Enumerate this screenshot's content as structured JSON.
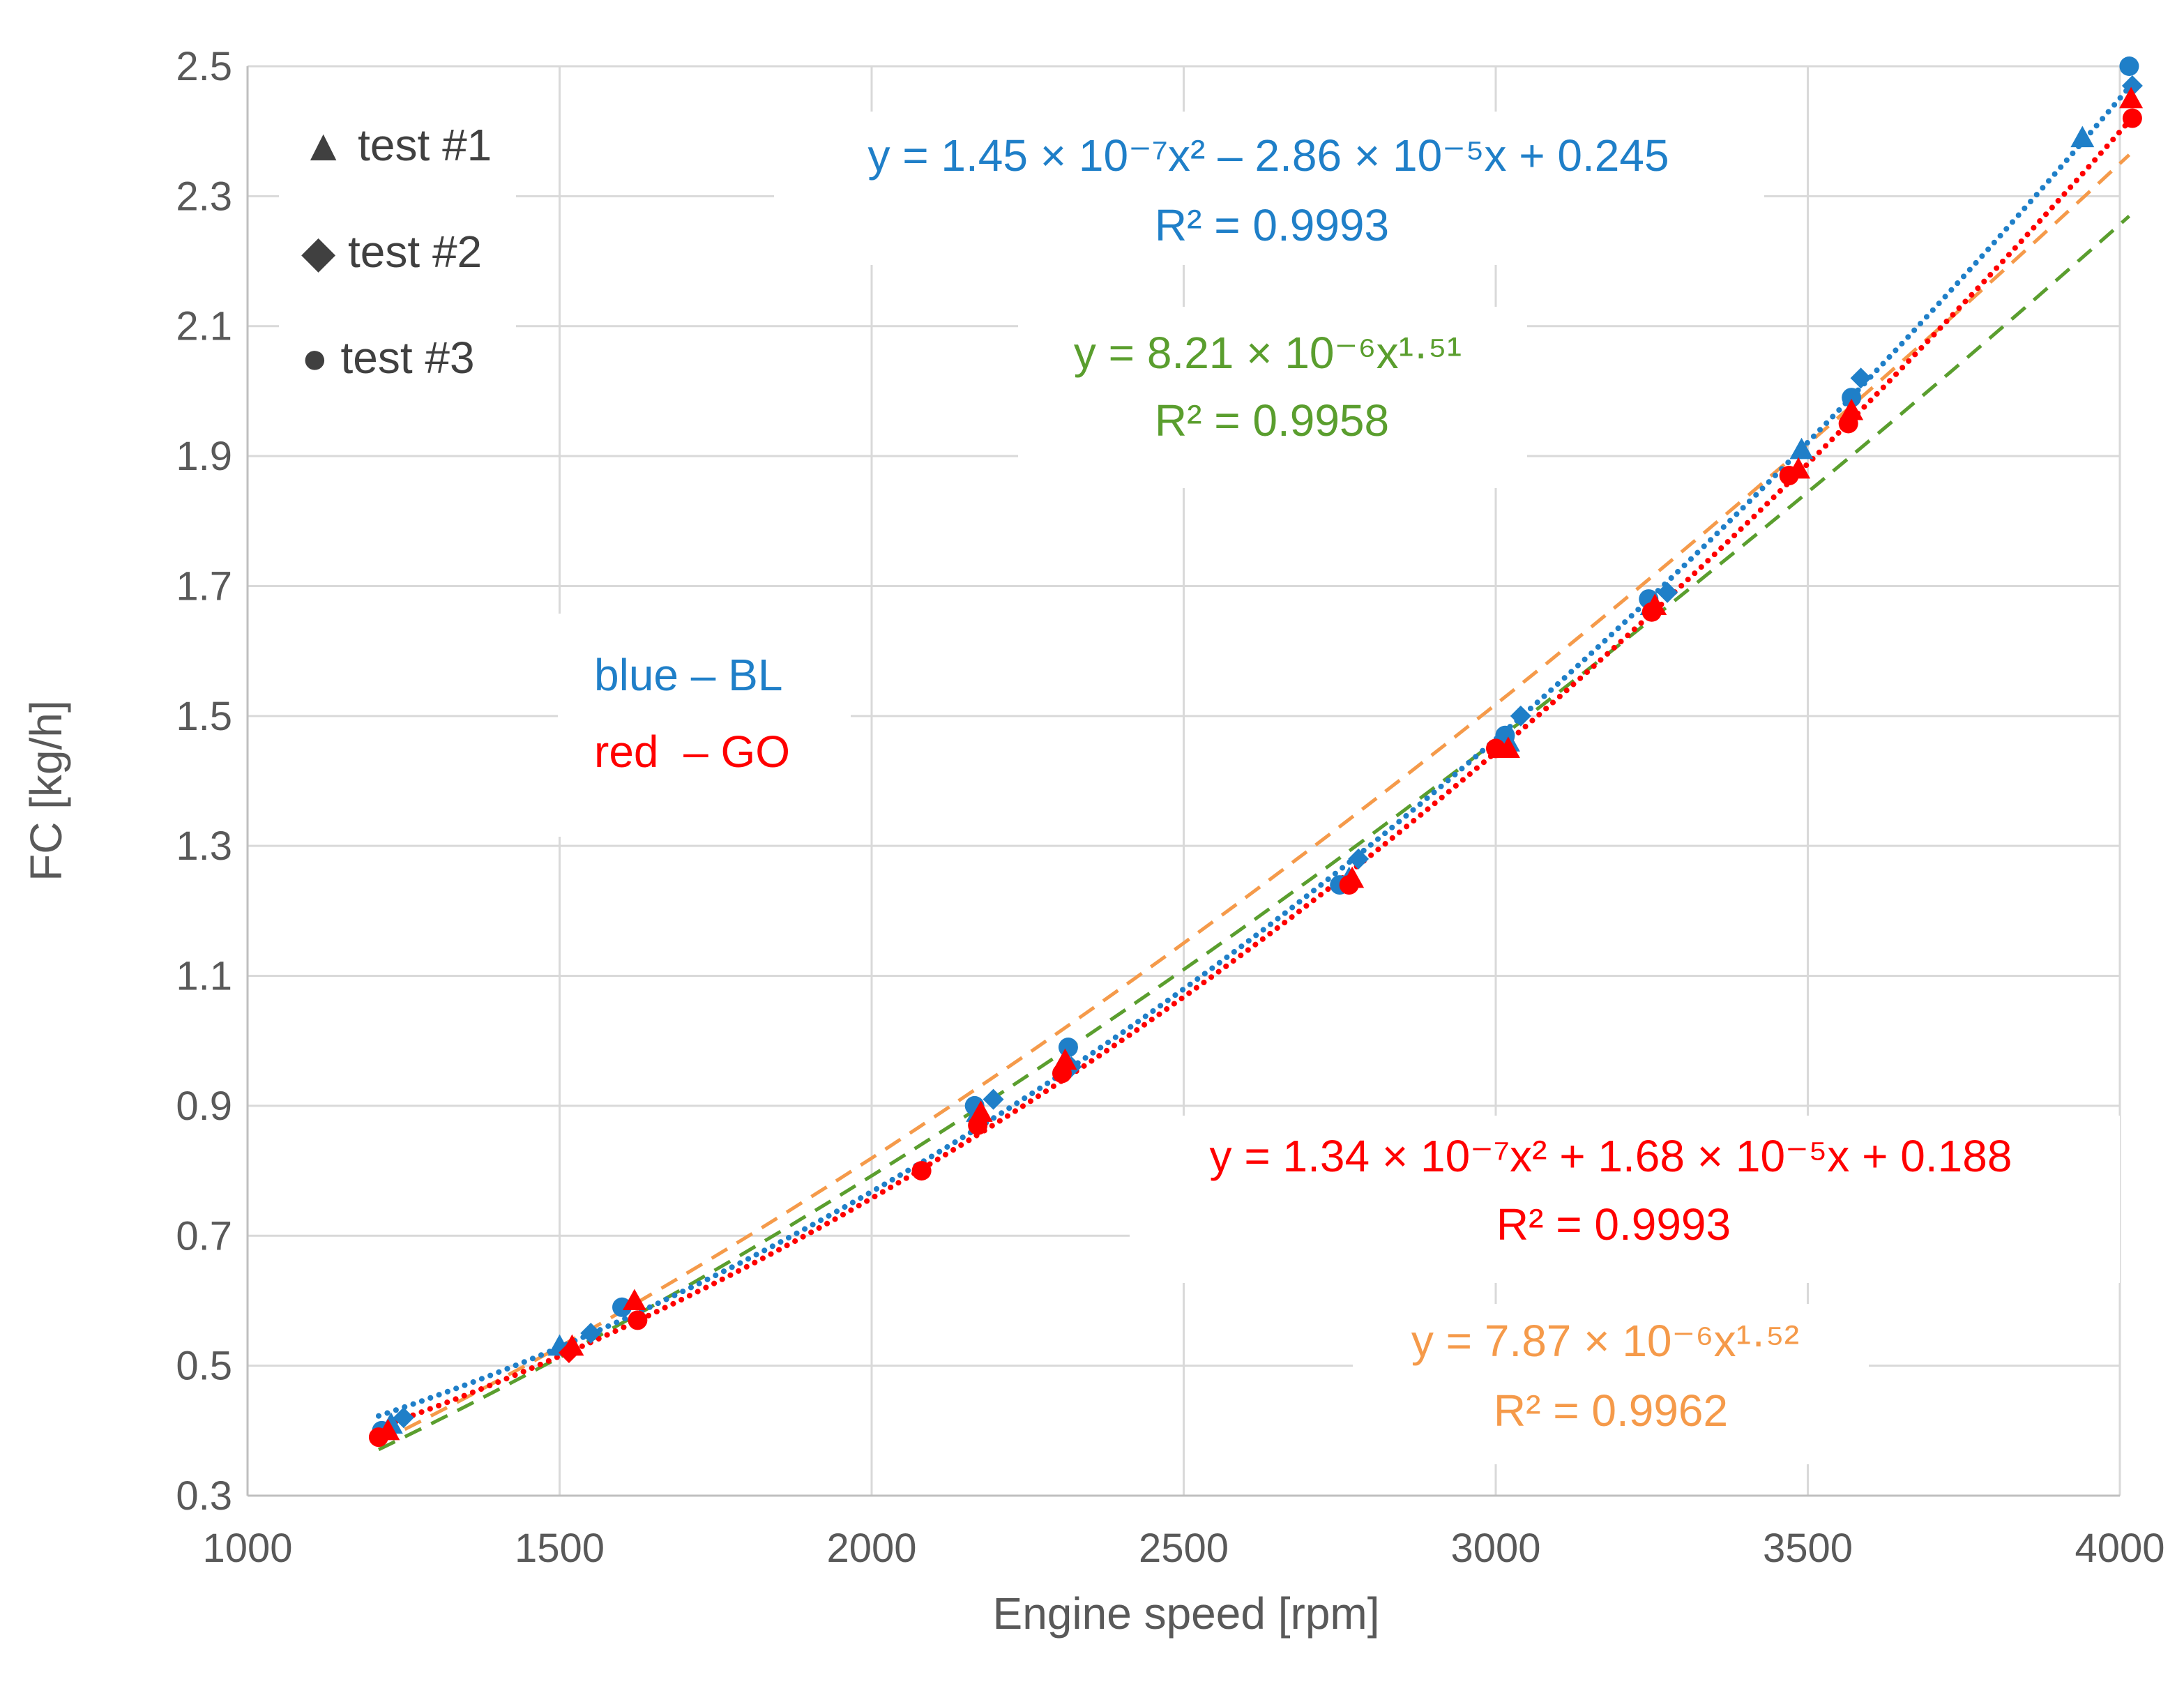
{
  "colors": {
    "blue": "#1f7fc8",
    "red": "#ff0000",
    "green": "#5a9e2e",
    "orange": "#f59a4a",
    "grid": "#d9d9d9",
    "axis": "#bfbfbf",
    "text": "#595959",
    "marker_gray": "#404040"
  },
  "chart_data": {
    "type": "scatter",
    "xlabel": "Engine speed [rpm]",
    "ylabel": "FC [kg/h]",
    "xlim": [
      1000,
      4000
    ],
    "ylim": [
      0.3,
      2.5
    ],
    "xticks": [
      1000,
      1500,
      2000,
      2500,
      3000,
      3500,
      4000
    ],
    "yticks": [
      0.3,
      0.5,
      0.7,
      0.9,
      1.1,
      1.3,
      1.5,
      1.7,
      1.9,
      2.1,
      2.3,
      2.5
    ],
    "xtick_labels": [
      "1000",
      "1500",
      "2000",
      "2500",
      "3000",
      "3500",
      "4000"
    ],
    "ytick_labels": [
      "0.3",
      "0.5",
      "0.7",
      "0.9",
      "1.1",
      "1.3",
      "1.5",
      "1.7",
      "1.9",
      "2.1",
      "2.3",
      "2.5"
    ],
    "grid": true,
    "legend": {
      "position": "top-left",
      "items": [
        {
          "marker": "triangle",
          "label": "▲ test #1"
        },
        {
          "marker": "diamond",
          "label": "◆ test #2"
        },
        {
          "marker": "circle",
          "label": "● test #3"
        }
      ]
    },
    "color_key": {
      "blue_line": "blue – BL",
      "red_line": "red  – GO"
    },
    "series": [
      {
        "name": "BL (blue)",
        "color": "blue",
        "points": [
          {
            "x": 1230,
            "y": 0.41,
            "marker": "triangle"
          },
          {
            "x": 1250,
            "y": 0.42,
            "marker": "diamond"
          },
          {
            "x": 1215,
            "y": 0.4,
            "marker": "circle"
          },
          {
            "x": 1500,
            "y": 0.53,
            "marker": "triangle"
          },
          {
            "x": 1550,
            "y": 0.55,
            "marker": "diamond"
          },
          {
            "x": 1600,
            "y": 0.59,
            "marker": "circle"
          },
          {
            "x": 2165,
            "y": 0.9,
            "marker": "circle"
          },
          {
            "x": 2195,
            "y": 0.91,
            "marker": "diamond"
          },
          {
            "x": 2170,
            "y": 0.89,
            "marker": "triangle"
          },
          {
            "x": 2315,
            "y": 0.99,
            "marker": "circle"
          },
          {
            "x": 2320,
            "y": 0.96,
            "marker": "diamond"
          },
          {
            "x": 2310,
            "y": 0.97,
            "marker": "triangle"
          },
          {
            "x": 2750,
            "y": 1.24,
            "marker": "circle"
          },
          {
            "x": 2780,
            "y": 1.28,
            "marker": "diamond"
          },
          {
            "x": 2765,
            "y": 1.25,
            "marker": "triangle"
          },
          {
            "x": 3015,
            "y": 1.47,
            "marker": "circle"
          },
          {
            "x": 3040,
            "y": 1.5,
            "marker": "diamond"
          },
          {
            "x": 3020,
            "y": 1.46,
            "marker": "triangle"
          },
          {
            "x": 3245,
            "y": 1.68,
            "marker": "circle"
          },
          {
            "x": 3275,
            "y": 1.69,
            "marker": "diamond"
          },
          {
            "x": 3250,
            "y": 1.67,
            "marker": "triangle"
          },
          {
            "x": 3490,
            "y": 1.91,
            "marker": "triangle"
          },
          {
            "x": 3570,
            "y": 1.99,
            "marker": "circle"
          },
          {
            "x": 3585,
            "y": 2.02,
            "marker": "diamond"
          },
          {
            "x": 3940,
            "y": 2.39,
            "marker": "triangle"
          },
          {
            "x": 4015,
            "y": 2.5,
            "marker": "circle"
          },
          {
            "x": 4020,
            "y": 2.47,
            "marker": "diamond"
          }
        ],
        "fit": {
          "kind": "poly2",
          "a": 1.45e-07,
          "b": -2.86e-05,
          "c": 0.245,
          "x_range": [
            1210,
            4025
          ],
          "style": "dotted"
        },
        "annotation": {
          "equation": "y = 1.45 × 10⁻⁷x² – 2.86 × 10⁻⁵x + 0.245",
          "r2": "R² = 0.9993"
        }
      },
      {
        "name": "GO (red)",
        "color": "red",
        "points": [
          {
            "x": 1210,
            "y": 0.39,
            "marker": "circle"
          },
          {
            "x": 1225,
            "y": 0.4,
            "marker": "triangle"
          },
          {
            "x": 1520,
            "y": 0.53,
            "marker": "triangle"
          },
          {
            "x": 1515,
            "y": 0.52,
            "marker": "diamond"
          },
          {
            "x": 1625,
            "y": 0.57,
            "marker": "circle"
          },
          {
            "x": 1620,
            "y": 0.6,
            "marker": "triangle"
          },
          {
            "x": 2080,
            "y": 0.8,
            "marker": "circle"
          },
          {
            "x": 2170,
            "y": 0.87,
            "marker": "circle"
          },
          {
            "x": 2175,
            "y": 0.89,
            "marker": "triangle"
          },
          {
            "x": 2305,
            "y": 0.95,
            "marker": "circle"
          },
          {
            "x": 2310,
            "y": 0.97,
            "marker": "triangle"
          },
          {
            "x": 2765,
            "y": 1.24,
            "marker": "circle"
          },
          {
            "x": 2770,
            "y": 1.25,
            "marker": "triangle"
          },
          {
            "x": 3000,
            "y": 1.45,
            "marker": "circle"
          },
          {
            "x": 3020,
            "y": 1.45,
            "marker": "triangle"
          },
          {
            "x": 3250,
            "y": 1.66,
            "marker": "circle"
          },
          {
            "x": 3255,
            "y": 1.67,
            "marker": "triangle"
          },
          {
            "x": 3470,
            "y": 1.87,
            "marker": "circle"
          },
          {
            "x": 3485,
            "y": 1.88,
            "marker": "triangle"
          },
          {
            "x": 3565,
            "y": 1.95,
            "marker": "circle"
          },
          {
            "x": 3570,
            "y": 1.97,
            "marker": "triangle"
          },
          {
            "x": 4020,
            "y": 2.42,
            "marker": "circle"
          },
          {
            "x": 4018,
            "y": 2.45,
            "marker": "triangle"
          }
        ],
        "fit": {
          "kind": "poly2",
          "a": 1.34e-07,
          "b": 1.68e-05,
          "c": 0.188,
          "x_range": [
            1210,
            4025
          ],
          "style": "dotted"
        },
        "annotation": {
          "equation": "y = 1.34 × 10⁻⁷x² + 1.68 × 10⁻⁵x + 0.188",
          "r2": "R² = 0.9993"
        }
      },
      {
        "name": "BL power fit (green)",
        "color": "green",
        "points": [],
        "fit": {
          "kind": "power",
          "a": 8.21e-06,
          "b": 1.51,
          "x_range": [
            1210,
            4015
          ],
          "style": "dashed"
        },
        "annotation": {
          "equation": "y = 8.21 × 10⁻⁶x¹·⁵¹",
          "r2": "R² = 0.9958"
        }
      },
      {
        "name": "GO power fit (orange)",
        "color": "orange",
        "points": [],
        "fit": {
          "kind": "power",
          "a": 7.87e-06,
          "b": 1.52,
          "x_range": [
            1210,
            4015
          ],
          "style": "dashed"
        },
        "annotation": {
          "equation": "y = 7.87 × 10⁻⁶x¹·⁵²",
          "r2": "R² = 0.9962"
        }
      }
    ]
  }
}
